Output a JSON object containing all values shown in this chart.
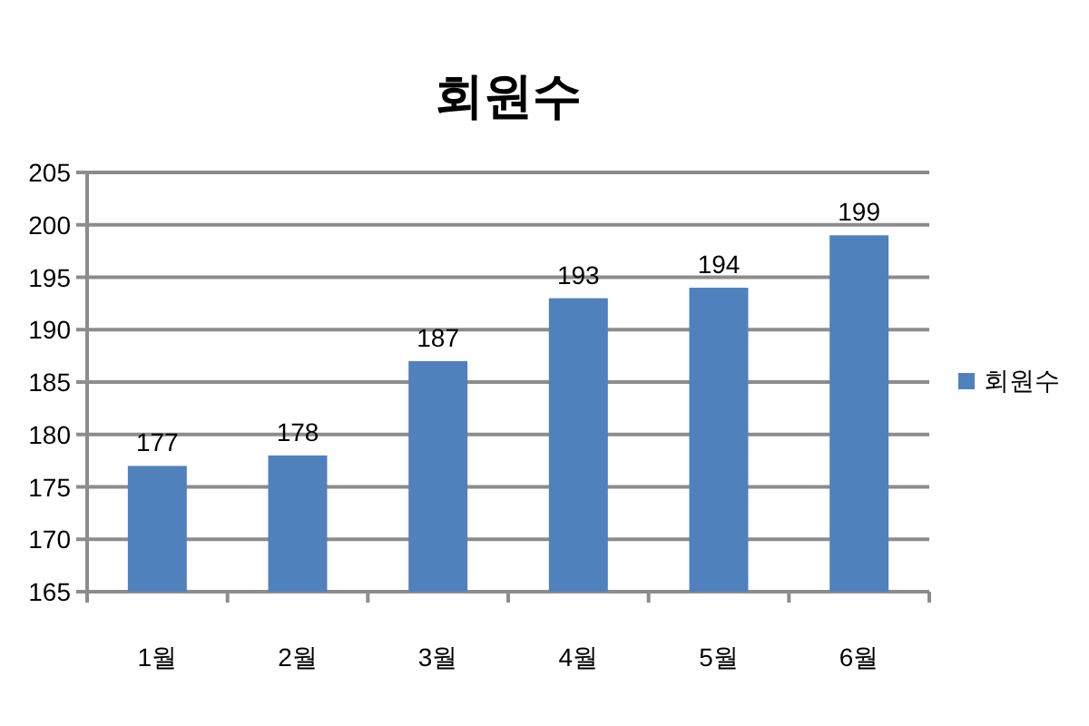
{
  "chart_data": {
    "type": "bar",
    "title": "회원수",
    "categories": [
      "1월",
      "2월",
      "3월",
      "4월",
      "5월",
      "6월"
    ],
    "series": [
      {
        "name": "회원수",
        "color": "#4f81bd",
        "values": [
          177,
          178,
          187,
          193,
          194,
          199
        ]
      }
    ],
    "ylim": [
      165,
      205
    ],
    "yticks": [
      165,
      170,
      175,
      180,
      185,
      190,
      195,
      200,
      205
    ],
    "grid": "y",
    "legend": "right",
    "data_labels": true
  }
}
